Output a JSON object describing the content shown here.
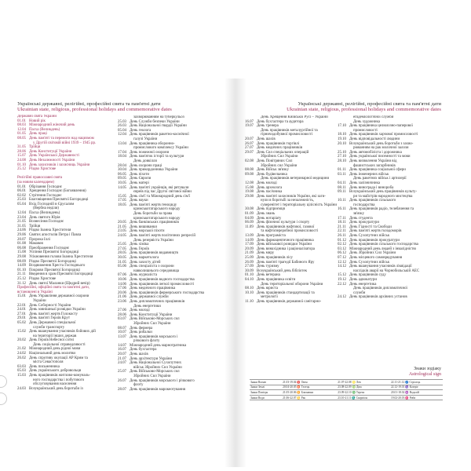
{
  "left_header": {
    "ua": "Українські державні, релігійні, професійні свята та пам'ятні дати",
    "en": "Ukrainian state, religious, professional holidays and commemorative dates"
  },
  "right_header": {
    "ua": "Українські державні, релігійні, професійні свята та пам'ятні дати",
    "en": "Ukrainian state, religious, professional holidays and commemorative dates"
  },
  "col1": [
    {
      "t": "Державні свята України",
      "red": true
    },
    {
      "d": "01.01",
      "t": "Новий рік",
      "red": true
    },
    {
      "d": "08.03",
      "t": "Міжнародний жіночий день",
      "red": true
    },
    {
      "d": "12.04",
      "t": "Пасха (Великдень)",
      "red": true
    },
    {
      "d": "01.05",
      "t": "День праці",
      "red": true
    },
    {
      "d": "08.05",
      "t": "День пам'яті та перемоги над нацизмом",
      "red": true
    },
    {
      "t": "у Другій світовій війні 1939 – 1945 рр.",
      "red": true,
      "ind": true
    },
    {
      "d": "31.05",
      "t": "Трійця",
      "red": true
    },
    {
      "d": "28.06",
      "t": "День Конституції України",
      "red": true
    },
    {
      "d": "15.07",
      "t": "День Української Державності",
      "red": true
    },
    {
      "d": "24.08",
      "t": "День Незалежності України",
      "red": true
    },
    {
      "d": "01.10",
      "t": "День захисників і захисниць України",
      "red": true
    },
    {
      "d": "25.12",
      "t": "Різдво Христове",
      "red": true
    },
    {
      "t": ""
    },
    {
      "t": "Релігійні православні свята",
      "red": true
    },
    {
      "t": "(за новим календарем)",
      "red": true
    },
    {
      "d": "01.01",
      "t": "Обрізання Господнє"
    },
    {
      "d": "06.01",
      "t": "Хрещення Господнє (Богоявлення)"
    },
    {
      "d": "02.02",
      "t": "Стрітення Господнє"
    },
    {
      "d": "25.03",
      "t": "Благовіщення Пресвятої Богородиці"
    },
    {
      "d": "05.04",
      "t": "Вхід Господній в Єрусалим"
    },
    {
      "t": "(Вербна неділя)",
      "ind": true
    },
    {
      "d": "12.04",
      "t": "Пасха (Великдень)"
    },
    {
      "d": "23.04",
      "t": "День святого Юрія"
    },
    {
      "d": "21.05",
      "t": "Вознесіння Господнє"
    },
    {
      "d": "31.05",
      "t": "Трійця"
    },
    {
      "d": "24.06",
      "t": "Різдво Іоанна Хрестителя"
    },
    {
      "d": "29.06",
      "t": "Святих апостолів Петра і Павла"
    },
    {
      "d": "20.07",
      "t": "Пророка Іллі"
    },
    {
      "d": "01.08",
      "t": "Маковея"
    },
    {
      "d": "06.08",
      "t": "Преображення Господнє"
    },
    {
      "d": "15.08",
      "t": "Успіння Пресвятої Богородиці"
    },
    {
      "d": "29.08",
      "t": "Усікновення голови Іоанна Хрестителя"
    },
    {
      "d": "08.09",
      "t": "Різдво Пресвятої Богородиці"
    },
    {
      "d": "14.09",
      "t": "Воздвиження Хреста Господнього"
    },
    {
      "d": "01.10",
      "t": "Покрови Пресвятої Богородиці"
    },
    {
      "d": "21.11",
      "t": "Введення в храм Пресвятої Богородиці"
    },
    {
      "d": "25.12",
      "t": "Різдво Христове"
    },
    {
      "d": "31.12",
      "t": "День святої Маланки (Щедрий вечір)"
    },
    {
      "t": "Професійні, офіційні свята та пам'ятні дати,",
      "red": true
    },
    {
      "t": "встановлені в Україні",
      "red": true
    },
    {
      "d": "15.01",
      "t": "День Управління державної охорони"
    },
    {
      "t": "України",
      "ind": true
    },
    {
      "d": "22.01",
      "t": "День Соборності України"
    },
    {
      "d": "24.01",
      "t": "День зовнішньої розвідки України"
    },
    {
      "d": "27.01",
      "t": "День пам'яті жертв Голокосту"
    },
    {
      "d": "29.01",
      "t": "День пам'яті Героїв Крут"
    },
    {
      "d": "05.02",
      "t": "День Державної спеціальної"
    },
    {
      "t": "служби транспорту",
      "ind": true
    },
    {
      "d": "15.02",
      "t": "День вшанування учасників бойових дій"
    },
    {
      "t": "на території інших держав",
      "ind": true
    },
    {
      "d": "20.02",
      "t": "День Героїв Небесної сотні"
    },
    {
      "t": "День соціальної справедливості",
      "ind": true
    },
    {
      "d": "21.02",
      "t": "Міжнародний день рідної мови"
    },
    {
      "d": "24.02",
      "t": "Національний день молитви"
    },
    {
      "d": "26.02",
      "t": "День спротиву окупації АР Крим та"
    },
    {
      "t": "міста Севастополя",
      "ind": true
    },
    {
      "d": "03.03",
      "t": "День письменника"
    },
    {
      "d": "05.03",
      "t": "День українського добровольця"
    },
    {
      "d": "15.03",
      "t": "День працівників житлово-комуналь-"
    },
    {
      "t": "ного господарства і побутового",
      "ind": true
    },
    {
      "t": "обслуговування населення",
      "ind": true
    },
    {
      "d": "24.03",
      "t": "Всеукраїнський день боротьби із"
    }
  ],
  "col2": [
    {
      "t": "захворюванням на туберкульоз",
      "ind": true
    },
    {
      "d": "25.03",
      "t": "День Служби безпеки України"
    },
    {
      "d": "26.03",
      "t": "День Національної гвардії України"
    },
    {
      "d": "05.04",
      "t": "День геолога"
    },
    {
      "d": "12.04",
      "t": "День працівників ракетно-космічної"
    },
    {
      "t": "галузі України",
      "ind": true
    },
    {
      "d": "13.04",
      "t": "День працівника оборонно-"
    },
    {
      "t": "промислового комплексу України",
      "ind": true
    },
    {
      "d": "17.04",
      "t": "День пожежної охорони"
    },
    {
      "d": "18.04",
      "t": "День пам'яток історії та культури"
    },
    {
      "t": "День довкілля",
      "ind": true
    },
    {
      "d": "28.04",
      "t": "День охорони праці"
    },
    {
      "d": "30.04",
      "t": "День прикордонника України"
    },
    {
      "d": "06.05",
      "t": "День піхоти"
    },
    {
      "d": "09.05",
      "t": "День Європи"
    },
    {
      "d": "10.05",
      "t": "День матері"
    },
    {
      "d": "14.05",
      "t": "День пам'яті українців, які рятували"
    },
    {
      "t": "євреїв під час Другої світової війни",
      "ind": true
    },
    {
      "d": "15.05",
      "t": "День сім'ї та Міжнародний день сім'ї"
    },
    {
      "d": "17.05",
      "t": "День науки"
    },
    {
      "d": "18.05",
      "t": "День пам'яті жертв геноциду"
    },
    {
      "t": "кримськотатарського народу",
      "ind": true
    },
    {
      "t": "День боротьби за права",
      "ind": true
    },
    {
      "t": "кримськотатарського народу",
      "ind": true
    },
    {
      "d": "20.05",
      "t": "День банківських працівників"
    },
    {
      "d": "21.05",
      "t": "День вишиванки"
    },
    {
      "d": "23.05",
      "t": "День морської піхоти"
    },
    {
      "d": "24.05",
      "t": "День пам'яті жертв політичних репресій"
    },
    {
      "t": "День резервіста України",
      "ind": true
    },
    {
      "d": "25.05",
      "t": "День хіміка"
    },
    {
      "d": "27.05",
      "t": "День Героїв"
    },
    {
      "d": "28.05",
      "t": "День працівників видавництв"
    },
    {
      "d": "30.05",
      "t": "День маркетолога"
    },
    {
      "d": "31.05",
      "t": "День захисту дітей"
    },
    {
      "d": "05.06",
      "t": "День спеціаліста з охорони"
    },
    {
      "t": "навколишнього середовища",
      "ind": true
    },
    {
      "d": "07.06",
      "t": "День журналіста"
    },
    {
      "d": "10.06",
      "t": "День працівників водного господарства"
    },
    {
      "d": "14.06",
      "t": "День працівників легкої промисловості"
    },
    {
      "d": "17.06",
      "t": "День медичного працівника"
    },
    {
      "d": "20.06",
      "t": "День працівників фермерського господарства"
    },
    {
      "d": "21.06",
      "t": "День державної служби"
    },
    {
      "d": "23.06",
      "t": "День дипломатичних працівників"
    },
    {
      "t": "День енергетики",
      "ind": true
    },
    {
      "d": "27.06",
      "t": "День молоді"
    },
    {
      "d": "28.06",
      "t": "День Конституції України"
    },
    {
      "d": "03.07",
      "t": "День Військово-Морських сил"
    },
    {
      "t": "Збройних Сил України",
      "ind": true
    },
    {
      "d": "08.07",
      "t": "День фермера"
    },
    {
      "d": "10.07",
      "t": "День рибалки"
    },
    {
      "d": "13.07",
      "t": "День працівників морського і"
    },
    {
      "t": "річкового флоту",
      "ind": true
    },
    {
      "d": "14.07",
      "t": "Міжнародний день марнотратника"
    },
    {
      "d": "16.07",
      "t": "День бухгалтера"
    },
    {
      "d": "20.07",
      "t": "День шахів"
    },
    {
      "d": "21.07",
      "t": "День архітектури України"
    },
    {
      "d": "24.07",
      "t": "День Національної Сухопутних"
    },
    {
      "t": "військ Збройних Сил України",
      "ind": true
    },
    {
      "d": "25.07",
      "t": "День Військово-Морських сил"
    },
    {
      "t": "Збройних Сил України",
      "ind": true
    },
    {
      "d": "26.07",
      "t": "День працівників морського і річкового"
    },
    {
      "t": "флоту",
      "ind": true
    },
    {
      "d": "28.07",
      "t": "День працівників марокеотування"
    }
  ],
  "col3": [
    {
      "t": "День Хрещення Київської Русі – України",
      "ind": true
    },
    {
      "d": "16.07",
      "t": "День бухгалтера та аудитора"
    },
    {
      "d": "19.07",
      "t": "День тренера"
    },
    {
      "t": "День працівників металургійної та",
      "ind": true
    },
    {
      "t": "гірничодобувної промисловості",
      "ind": true
    },
    {
      "d": "20.07",
      "t": "День шахів"
    },
    {
      "d": "26.07",
      "t": "День працівників торгівлі"
    },
    {
      "d": "27.07",
      "t": "День медичних працівників"
    },
    {
      "d": "29.07",
      "t": "День Сил спеціальних операцій"
    },
    {
      "t": "Збройних Сил України",
      "ind": true
    },
    {
      "d": "02.08",
      "t": "День Повітряних Сил"
    },
    {
      "t": "Збройних сил України",
      "ind": true
    },
    {
      "d": "08.08",
      "t": "День Військ зв'язку"
    },
    {
      "d": "09.08",
      "t": "День будівельника"
    },
    {
      "t": "День працівників ветеринарної медицини",
      "ind": true
    },
    {
      "d": "12.08",
      "t": "День молоді"
    },
    {
      "d": "15.08",
      "t": "День археолога"
    },
    {
      "d": "19.08",
      "t": "День пасічника"
    },
    {
      "d": "29.08",
      "t": "День пам'яті захисників України, які заги-"
    },
    {
      "t": "нули в боротьбі за незалежність,",
      "ind": true
    },
    {
      "t": "суверенітет і територіальну цілісність України",
      "ind": true
    },
    {
      "d": "30.08",
      "t": "День підприємця"
    },
    {
      "d": "01.09",
      "t": "День знань"
    },
    {
      "d": "04.09",
      "t": "День нотаріату"
    },
    {
      "d": "06.09",
      "t": "День фізичної культури і спорту"
    },
    {
      "d": "11.09",
      "t": "День працівників нафтової, газової"
    },
    {
      "t": "та нафтопереробної промисловості",
      "ind": true
    },
    {
      "d": "13.09",
      "t": "День програміста"
    },
    {
      "d": "14.09",
      "t": "День фармацевтичного працівника"
    },
    {
      "d": "17.09",
      "t": "День військової розвідки України"
    },
    {
      "d": "20.09",
      "t": "День винахідника і раціоналізатора"
    },
    {
      "d": "21.09",
      "t": "День миру"
    },
    {
      "d": "25.09",
      "t": "День працівників лісу"
    },
    {
      "d": "26.09",
      "t": "День пам'яті трагедії Бабиного Яру"
    },
    {
      "d": "27.09",
      "t": "День туризму"
    },
    {
      "d": "30.09",
      "t": "Всеукраїнський день бібліотек"
    },
    {
      "d": "01.10",
      "t": "День ветерана"
    },
    {
      "d": "04.10",
      "t": "День працівника освіти"
    },
    {
      "t": "День територіальної оборони України",
      "ind": true
    },
    {
      "d": "08.10",
      "t": "День юриста"
    },
    {
      "d": "10.10",
      "t": "День працівників стандартизації та"
    },
    {
      "t": "метрології",
      "ind": true
    },
    {
      "d": "11.10",
      "t": "День працівників державної санітарно-"
    }
  ],
  "col4": [
    {
      "t": "епідеміологічної служби",
      "ind": true
    },
    {
      "t": "День художника",
      "ind": true
    },
    {
      "d": "17.10",
      "t": "День працівника целюлозно-паперової"
    },
    {
      "t": "промисловості",
      "ind": true
    },
    {
      "d": "18.10",
      "t": "День працівників харчової промисловості"
    },
    {
      "d": "19.10",
      "t": "День відповідальності людини"
    },
    {
      "d": "20.10",
      "t": "Всеукраїнський день боротьби з захво-"
    },
    {
      "t": "рюванням на рак молочної залози",
      "ind": true
    },
    {
      "d": "25.10",
      "t": "День автомобіліста і дорожника"
    },
    {
      "d": "27.10",
      "t": "День української писемності та мови"
    },
    {
      "d": "28.10",
      "t": "День визволення України від"
    },
    {
      "t": "фашистських загарбників",
      "ind": true
    },
    {
      "d": "01.11",
      "t": "День працівника соціальної сфери"
    },
    {
      "d": "03.11",
      "t": "День інженерних військ"
    },
    {
      "t": "День ракетних військ і артилерії",
      "ind": true
    },
    {
      "d": "04.11",
      "t": "День залізничника"
    },
    {
      "d": "08.11",
      "t": "День винограда і винороба"
    },
    {
      "d": "09.11",
      "t": "Всеукраїнський день працівників культу-"
    },
    {
      "t": "ри та майстрів народного мистецтва",
      "ind": true
    },
    {
      "d": "10.11",
      "t": "День працівників сільського"
    },
    {
      "t": "господарства",
      "ind": true
    },
    {
      "d": "16.11",
      "t": "День працівників радіо, телебачення та"
    },
    {
      "t": "зв'язку",
      "ind": true
    },
    {
      "d": "17.11",
      "t": "День студента"
    },
    {
      "d": "18.11",
      "t": "День прокуратури"
    },
    {
      "d": "21.11",
      "t": "День Гідності та Свободи"
    },
    {
      "d": "22.11",
      "t": "День пам'яті жертв голодоморів"
    },
    {
      "d": "26.11",
      "t": "День Сухопутних військ"
    },
    {
      "d": "01.12",
      "t": "День працівників прокуратури"
    },
    {
      "d": "02.12",
      "t": "День працівників сільського господарства"
    },
    {
      "d": "03.12",
      "t": "Міжнародний день людей з інвалідністю"
    },
    {
      "d": "06.12",
      "t": "День Збройних Сил України"
    },
    {
      "d": "07.12",
      "t": "День місцевого самоврядування"
    },
    {
      "d": "12.12",
      "t": "День Сухопутних військ"
    },
    {
      "d": "14.12",
      "t": "День вшанування учасників ліквідації"
    },
    {
      "t": "наслідків аварії на Чорнобильській АЕС",
      "ind": true
    },
    {
      "d": "15.12",
      "t": "День працівників суду"
    },
    {
      "d": "19.12",
      "t": "День адвокатури"
    },
    {
      "d": "22.12",
      "t": "День енергетика"
    },
    {
      "t": "День працівників дипломатичної",
      "ind": true
    },
    {
      "t": "служби",
      "ind": true
    },
    {
      "d": "24.12",
      "t": "День працівників архівних установ"
    }
  ],
  "zodiac": {
    "ua": "Знаки зодіаку",
    "en": "Astrological sign",
    "rows": [
      [
        "Знаки Вогню",
        "21.03-19.04 ♈ Овен",
        "21.07-22.08 ♌ Лев",
        "22.11-21.12 ♐ Стрілець"
      ],
      [
        "Знаки Землі",
        "20.04-20.05 ♉ Телець",
        "23.08-22.09 ♍ Діва",
        "22.12-19.01 ♑ Козеріг"
      ],
      [
        "Знаки Повітря",
        "21.05-20.06 ♊ Близнюки",
        "23.09-22.10 ♎ Терези",
        "20.01-18.02 ♒ Водолій"
      ],
      [
        "Знаки Води",
        "21.06-22.07 ♋ Рак",
        "23.10-21.11 ♏ Скорпіон",
        "19.02-20.03 ♓ Риби"
      ]
    ]
  },
  "colors": {
    "accent": "#a0305a",
    "text": "#333333"
  }
}
